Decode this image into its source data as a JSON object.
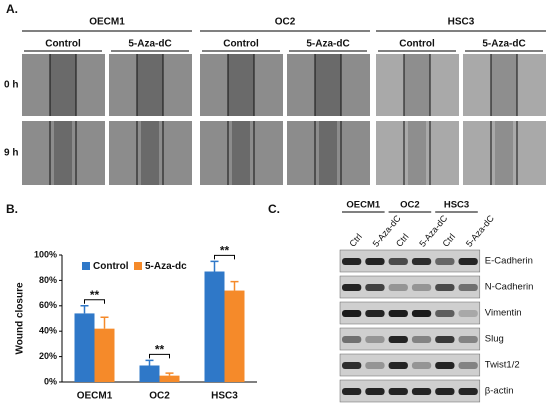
{
  "panel_a": {
    "label": "A.",
    "groups": [
      {
        "name": "OECM1",
        "conditions": [
          "Control",
          "5-Aza-dC"
        ]
      },
      {
        "name": "OC2",
        "conditions": [
          "Control",
          "5-Aza-dC"
        ]
      },
      {
        "name": "HSC3",
        "conditions": [
          "Control",
          "5-Aza-dC"
        ]
      }
    ],
    "times": [
      "0 h",
      "9 h"
    ]
  },
  "chart_data": {
    "type": "bar",
    "panel_label": "B.",
    "y_label": "Wound closure",
    "categories": [
      "OECM1",
      "OC2",
      "HSC3"
    ],
    "series": [
      {
        "name": "Control",
        "color": "#2f78c8",
        "values": [
          54,
          13,
          87
        ],
        "errors": [
          6,
          4,
          8
        ]
      },
      {
        "name": "5-Aza-dc",
        "color": "#f58a2a",
        "values": [
          42,
          5,
          72
        ],
        "errors": [
          9,
          2,
          7
        ]
      }
    ],
    "ylim": [
      0,
      100
    ],
    "yticks": [
      {
        "value": 0,
        "label": "0%"
      },
      {
        "value": 20,
        "label": "20%"
      },
      {
        "value": 40,
        "label": "40%"
      },
      {
        "value": 60,
        "label": "60%"
      },
      {
        "value": 80,
        "label": "80%"
      },
      {
        "value": 100,
        "label": "100%"
      }
    ],
    "significance": [
      "**",
      "**",
      "**"
    ],
    "legend": "top-left"
  },
  "panel_c": {
    "label": "C.",
    "groups": [
      "OECM1",
      "OC2",
      "HSC3"
    ],
    "lanes": [
      "Ctrl",
      "5-Aza-dC",
      "Ctrl",
      "5-Aza-dC",
      "Ctrl",
      "5-Aza-dC"
    ],
    "proteins": [
      "E-Cadherin",
      "N-Cadherin",
      "Vimentin",
      "Slug",
      "Twist1/2",
      "β-actin"
    ]
  }
}
